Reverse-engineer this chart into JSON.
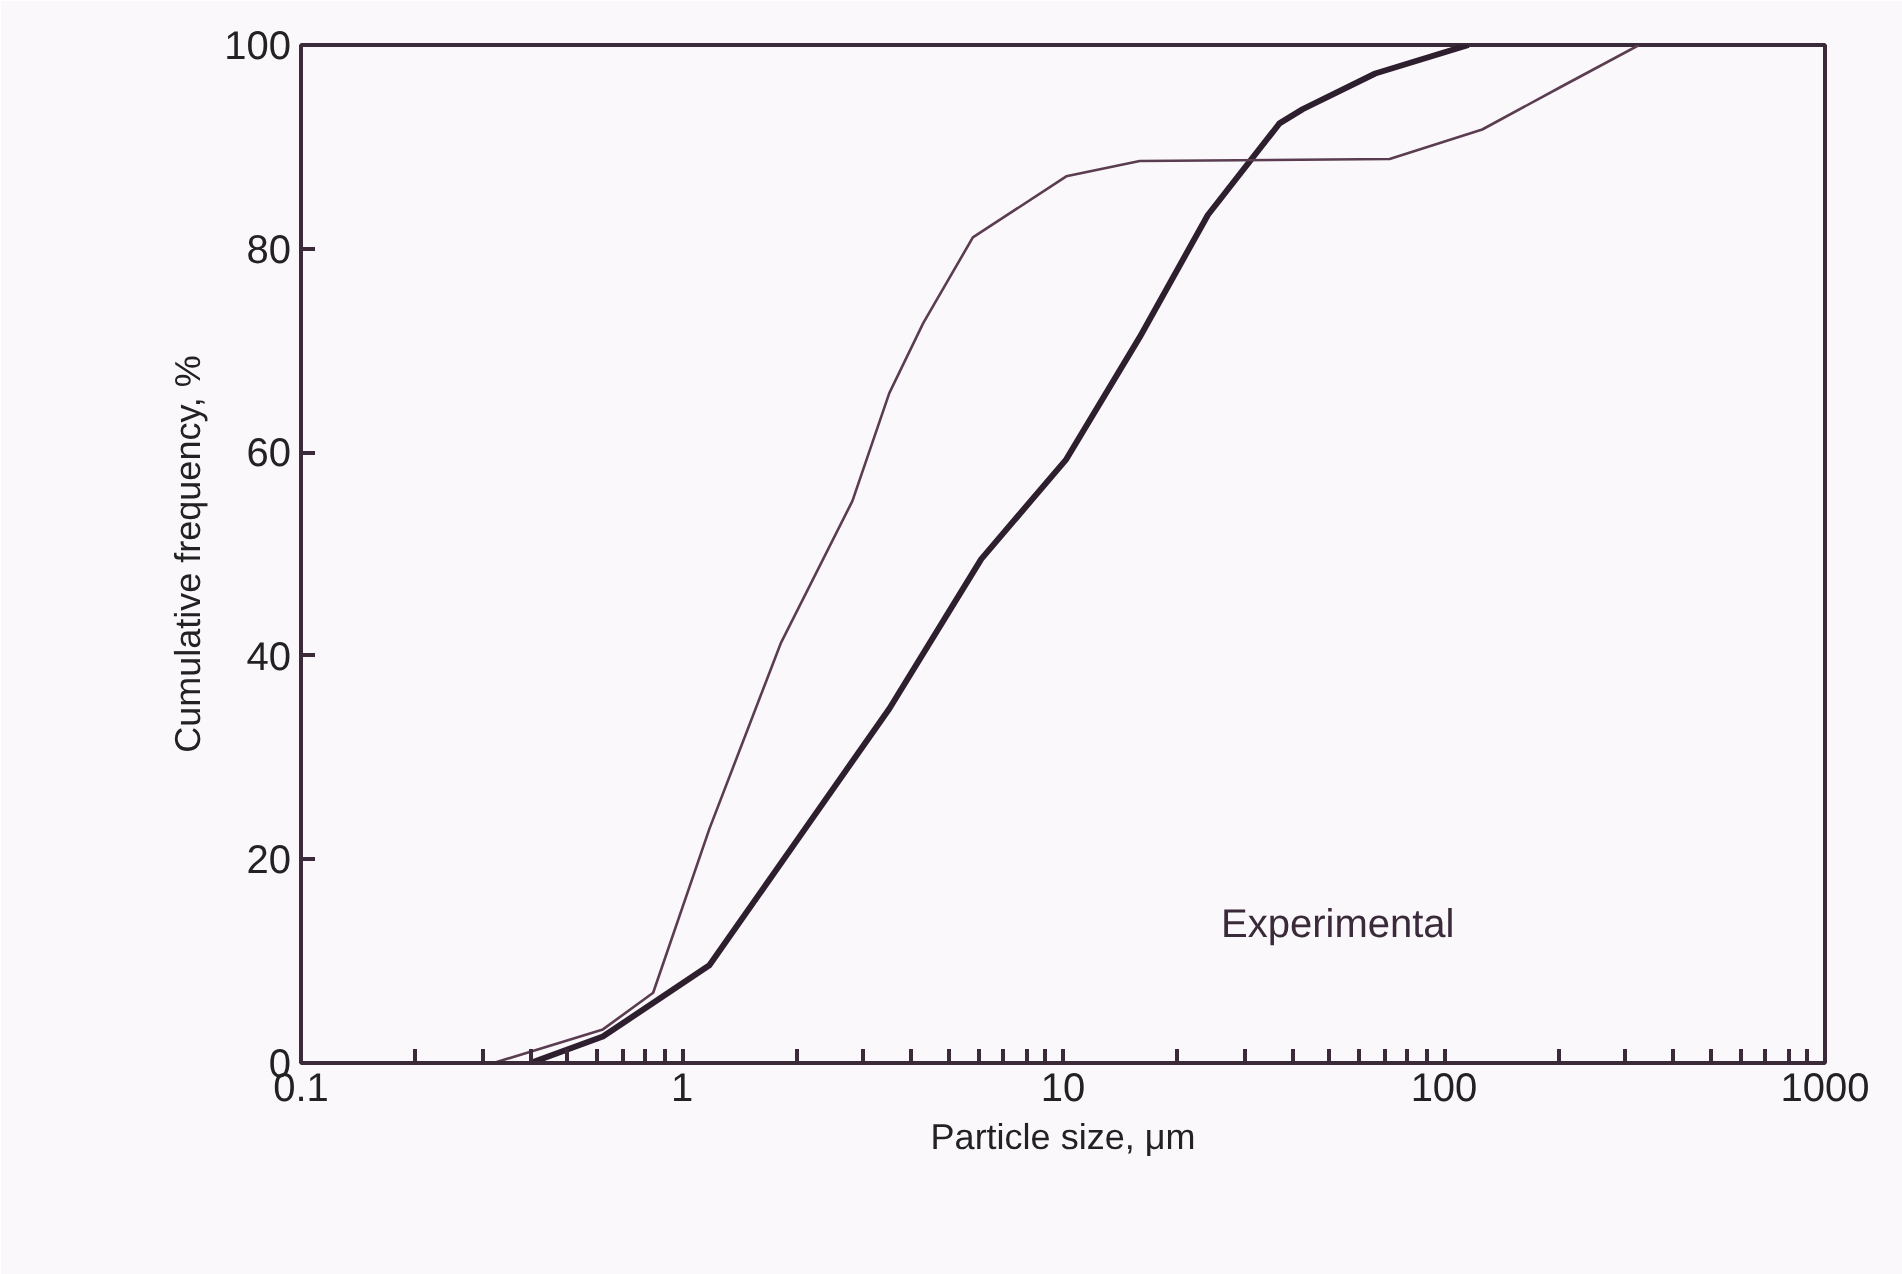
{
  "chart_data": {
    "type": "line",
    "xlabel": "Particle size, μm",
    "ylabel": "Cumulative frequency, %",
    "log": "x",
    "grid": false,
    "marker": "none",
    "line_style": "solid",
    "xlim": [
      0.1,
      1000
    ],
    "ylim": [
      0,
      100
    ],
    "xticks": [
      {
        "value": 0.1,
        "label": "0.1"
      },
      {
        "value": 0.2,
        "label": null
      },
      {
        "value": 0.3,
        "label": null
      },
      {
        "value": 0.4,
        "label": null
      },
      {
        "value": 0.5,
        "label": null
      },
      {
        "value": 0.6,
        "label": null
      },
      {
        "value": 0.7,
        "label": null
      },
      {
        "value": 0.8,
        "label": null
      },
      {
        "value": 0.9,
        "label": null
      },
      1,
      {
        "value": 2,
        "label": null
      },
      {
        "value": 3,
        "label": null
      },
      {
        "value": 4,
        "label": null
      },
      {
        "value": 5,
        "label": null
      },
      {
        "value": 6,
        "label": null
      },
      {
        "value": 7,
        "label": null
      },
      {
        "value": 8,
        "label": null
      },
      {
        "value": 9,
        "label": null
      },
      10,
      {
        "value": 20,
        "label": null
      },
      {
        "value": 30,
        "label": null
      },
      {
        "value": 40,
        "label": null
      },
      {
        "value": 50,
        "label": null
      },
      {
        "value": 60,
        "label": null
      },
      {
        "value": 70,
        "label": null
      },
      {
        "value": 80,
        "label": null
      },
      {
        "value": 90,
        "label": null
      },
      100,
      {
        "value": 200,
        "label": null
      },
      {
        "value": 300,
        "label": null
      },
      {
        "value": 400,
        "label": null
      },
      {
        "value": 500,
        "label": null
      },
      {
        "value": 600,
        "label": null
      },
      {
        "value": 700,
        "label": null
      },
      {
        "value": 800,
        "label": null
      },
      {
        "value": 900,
        "label": null
      },
      1000
    ],
    "yticks": [
      0,
      20,
      40,
      60,
      80,
      100
    ],
    "annotations": [
      "Experimental"
    ],
    "series": [
      {
        "color": "#2e1f2e",
        "x": [
          0.4,
          0.62,
          1.18,
          1.98,
          3.5,
          6.1,
          10.2,
          15.9,
          24,
          37,
          42.6,
          66,
          116
        ],
        "values": [
          0,
          2.6,
          9.6,
          21.6,
          34.8,
          49.5,
          59.3,
          71.3,
          83.3,
          92.3,
          93.7,
          97.2,
          100
        ]
      },
      {
        "color": "#5a3d50",
        "x": [
          0.32,
          0.62,
          0.84,
          1.18,
          1.82,
          2.8,
          3.5,
          4.3,
          5.8,
          10.2,
          15.9,
          72,
          126,
          203,
          325
        ],
        "values": [
          0,
          3.3,
          6.9,
          23,
          41.3,
          55.2,
          65.8,
          72.7,
          81.1,
          87.1,
          88.6,
          88.8,
          91.7,
          95.9,
          100
        ]
      }
    ]
  }
}
